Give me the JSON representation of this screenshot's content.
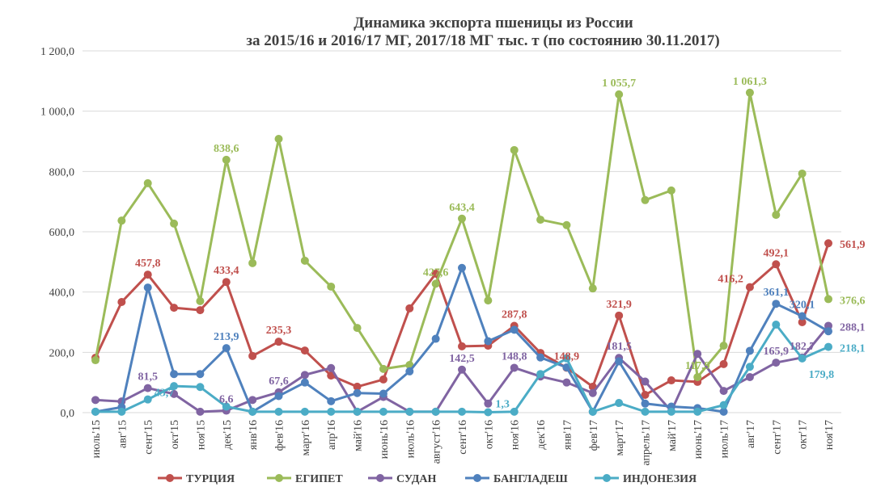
{
  "chart_data": {
    "type": "line",
    "title": [
      "Динамика экспорта пшеницы из России",
      "за  2015/16 и 2016/17 МГ,  2017/18 МГ тыс. т (по состоянию 30.11.2017)"
    ],
    "xlabel": "",
    "ylabel": "",
    "ylim": [
      0,
      1200
    ],
    "yticks": [
      "0,0",
      "200,0",
      "400,0",
      "600,0",
      "800,0",
      "1 000,0",
      "1 200,0"
    ],
    "grid": true,
    "legend_position": "bottom",
    "categories": [
      "июль'15",
      "авг'15",
      "сент'15",
      "окт'15",
      "ноя'15",
      "дек'15",
      "янв'16",
      "фев'16",
      "март'16",
      "апр'16",
      "май'16",
      "июнь'16",
      "июль'16",
      "август'16",
      "сент'16",
      "окт'16",
      "ноя'16",
      "дек'16",
      "янв'17",
      "фев'17",
      "март'17",
      "апрель'17",
      "май'17",
      "июнь'17",
      "июль'17",
      "авг'17",
      "сент'17",
      "окт'17",
      "ноя'17"
    ],
    "series": [
      {
        "name": "ТУРЦИЯ",
        "color": "#c0504d",
        "values": [
          182,
          367,
          457.8,
          348,
          340,
          433.4,
          188,
          235.3,
          206,
          123,
          86,
          110,
          346,
          461,
          220,
          222,
          287.8,
          198,
          148.9,
          86,
          321.9,
          59,
          107,
          102,
          161,
          416.2,
          492.1,
          300,
          561.9
        ]
      },
      {
        "name": "ЕГИПЕТ",
        "color": "#9bbb59",
        "values": [
          174,
          637,
          761,
          627,
          370,
          838.6,
          496,
          908,
          504,
          418,
          281,
          145,
          158,
          427.6,
          643.4,
          372,
          871,
          640,
          622,
          412,
          1055.7,
          705,
          737,
          117.9,
          222,
          1061.3,
          656,
          793,
          376.6
        ]
      },
      {
        "name": "СУДАН",
        "color": "#8064a2",
        "values": [
          42,
          37,
          81.5,
          62,
          3,
          6.6,
          42,
          67.6,
          125,
          148,
          3,
          52,
          3,
          3,
          142.5,
          30,
          148.8,
          120,
          100,
          65,
          181.5,
          103,
          5,
          195,
          72,
          118,
          165.9,
          182.7,
          288.1
        ]
      },
      {
        "name": "БАНГЛАДЕШ",
        "color": "#4f81bd",
        "values": [
          3,
          18,
          415,
          128,
          128,
          213.9,
          3,
          55,
          100,
          38,
          65,
          63,
          137,
          245,
          480,
          237,
          275,
          183,
          150,
          3,
          170,
          30,
          20,
          15,
          3,
          205,
          361.1,
          320.1,
          270
        ]
      },
      {
        "name": "ИНДОНЕЗИЯ",
        "color": "#4bacc6",
        "values": [
          3,
          3,
          43.7,
          88,
          85,
          20,
          3,
          3,
          3,
          3,
          3,
          3,
          3,
          3,
          3,
          1.3,
          3,
          128,
          180,
          3,
          32,
          3,
          3,
          3,
          25,
          152,
          292,
          179.8,
          218.1
        ]
      }
    ],
    "data_labels": [
      {
        "series": 0,
        "index": 2,
        "text": "457,8"
      },
      {
        "series": 0,
        "index": 5,
        "text": "433,4"
      },
      {
        "series": 0,
        "index": 7,
        "text": "235,3"
      },
      {
        "series": 0,
        "index": 16,
        "text": "287,8"
      },
      {
        "series": 0,
        "index": 18,
        "text": "148,9"
      },
      {
        "series": 0,
        "index": 20,
        "text": "321,9"
      },
      {
        "series": 0,
        "index": 25,
        "text": "416,2"
      },
      {
        "series": 0,
        "index": 26,
        "text": "492,1"
      },
      {
        "series": 0,
        "index": 28,
        "text": "561,9"
      },
      {
        "series": 1,
        "index": 5,
        "text": "838,6"
      },
      {
        "series": 1,
        "index": 13,
        "text": "427,6"
      },
      {
        "series": 1,
        "index": 14,
        "text": "643,4"
      },
      {
        "series": 1,
        "index": 20,
        "text": "1 055,7"
      },
      {
        "series": 1,
        "index": 23,
        "text": "117,9"
      },
      {
        "series": 1,
        "index": 25,
        "text": "1 061,3"
      },
      {
        "series": 1,
        "index": 28,
        "text": "376,6"
      },
      {
        "series": 2,
        "index": 2,
        "text": "81,5"
      },
      {
        "series": 2,
        "index": 5,
        "text": "6,6"
      },
      {
        "series": 2,
        "index": 7,
        "text": "67,6"
      },
      {
        "series": 2,
        "index": 14,
        "text": "142,5"
      },
      {
        "series": 2,
        "index": 16,
        "text": "148,8"
      },
      {
        "series": 2,
        "index": 20,
        "text": "181,5"
      },
      {
        "series": 2,
        "index": 26,
        "text": "165,9"
      },
      {
        "series": 2,
        "index": 27,
        "text": "182,7"
      },
      {
        "series": 2,
        "index": 28,
        "text": "288,1"
      },
      {
        "series": 3,
        "index": 5,
        "text": "213,9"
      },
      {
        "series": 3,
        "index": 26,
        "text": "361,1"
      },
      {
        "series": 3,
        "index": 27,
        "text": "320,1"
      },
      {
        "series": 4,
        "index": 2,
        "text": "43,7"
      },
      {
        "series": 4,
        "index": 15,
        "text": "1,3"
      },
      {
        "series": 4,
        "index": 27,
        "text": "179,8"
      },
      {
        "series": 4,
        "index": 28,
        "text": "218,1"
      }
    ]
  }
}
